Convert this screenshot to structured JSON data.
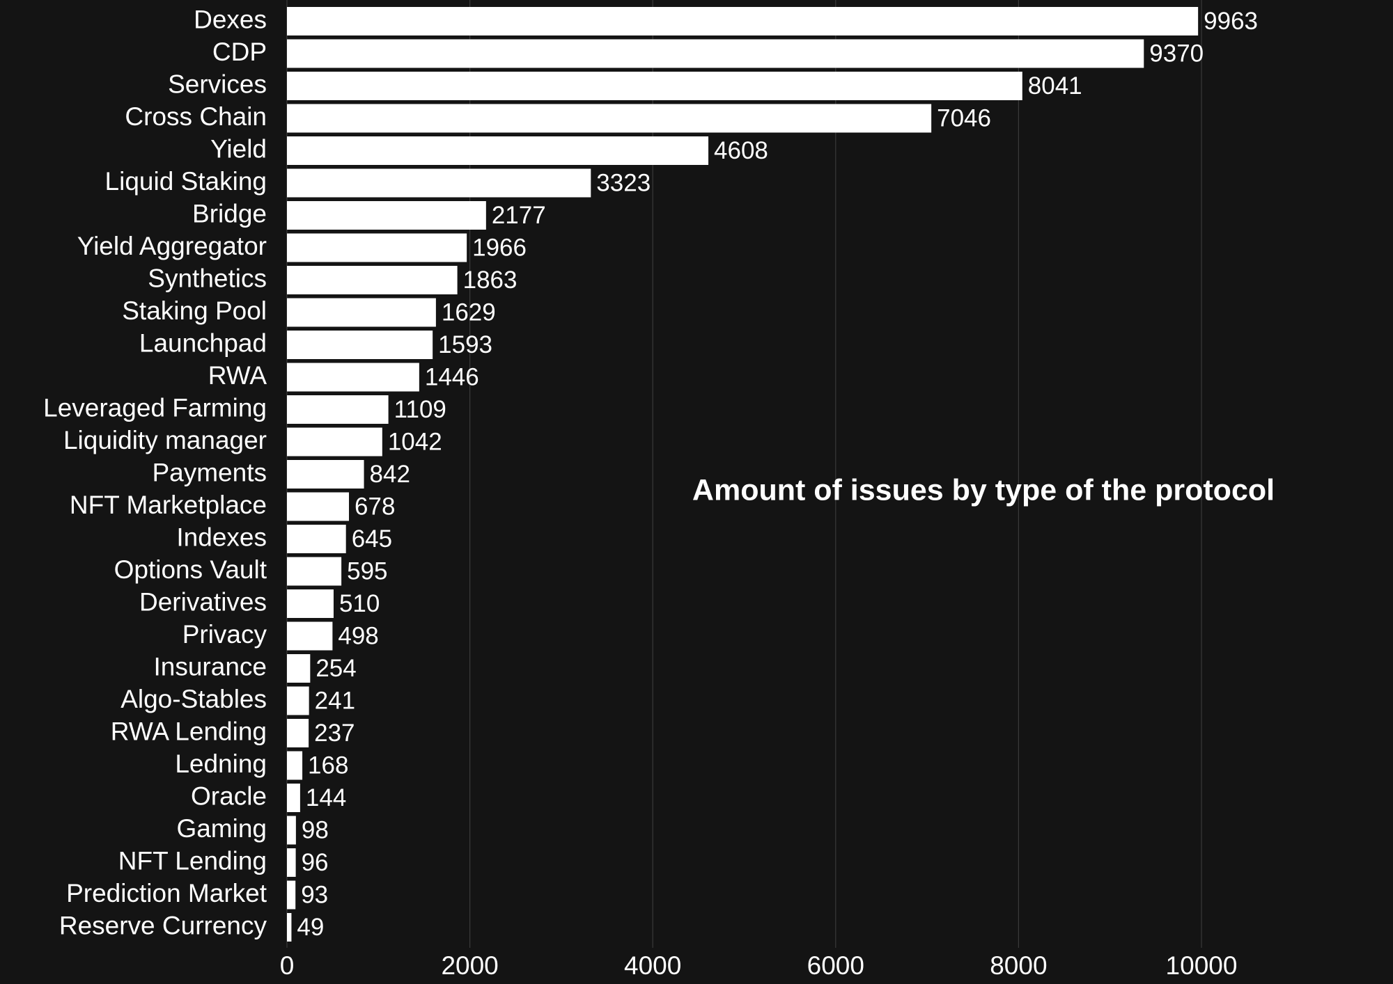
{
  "chart_data": {
    "type": "bar",
    "orientation": "horizontal",
    "title": "Amount of issues by type of the protocol",
    "xlabel": "",
    "ylabel": "",
    "xlim": [
      0,
      11500
    ],
    "xticks": [
      0,
      2000,
      4000,
      6000,
      8000,
      10000
    ],
    "grid": true,
    "categories": [
      "Dexes",
      "CDP",
      "Services",
      "Cross Chain",
      "Yield",
      "Liquid Staking",
      "Bridge",
      "Yield Aggregator",
      "Synthetics",
      "Staking Pool",
      "Launchpad",
      "RWA",
      "Leveraged Farming",
      "Liquidity manager",
      "Payments",
      "NFT Marketplace",
      "Indexes",
      "Options Vault",
      "Derivatives",
      "Privacy",
      "Insurance",
      "Algo-Stables",
      "RWA Lending",
      "Ledning",
      "Oracle",
      "Gaming",
      "NFT Lending",
      "Prediction Market",
      "Reserve Currency"
    ],
    "values": [
      9963,
      9370,
      8041,
      7046,
      4608,
      3323,
      2177,
      1966,
      1863,
      1629,
      1593,
      1446,
      1109,
      1042,
      842,
      678,
      645,
      595,
      510,
      498,
      254,
      241,
      237,
      168,
      144,
      98,
      96,
      93,
      49
    ],
    "colors": {
      "background": "#141414",
      "bar": "#ffffff",
      "grid": "#3a3a3a",
      "text": "#ffffff"
    }
  }
}
